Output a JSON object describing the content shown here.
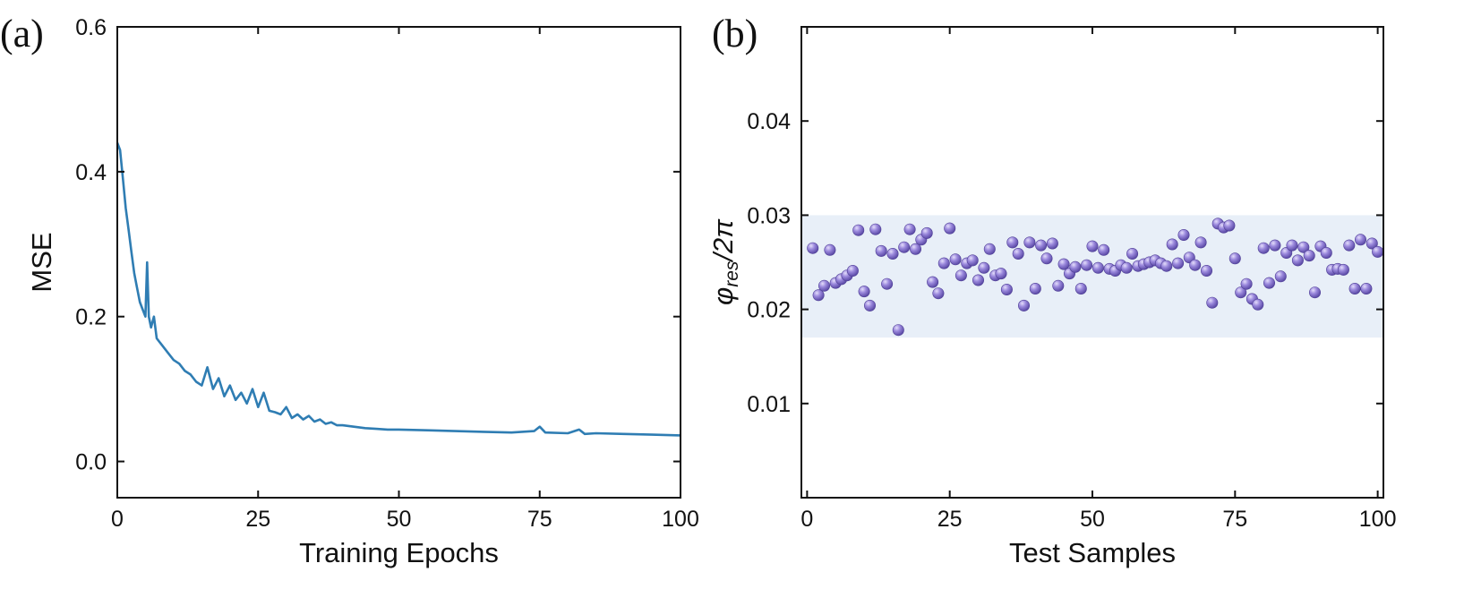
{
  "chart_data": [
    {
      "type": "line",
      "panel_label": "(a)",
      "xlabel": "Training Epochs",
      "ylabel": "MSE",
      "xlim": [
        0,
        100
      ],
      "ylim": [
        -0.05,
        0.6
      ],
      "xticks": [
        0,
        25,
        50,
        75,
        100
      ],
      "xtick_labels": [
        "0",
        "25",
        "50",
        "75",
        "100"
      ],
      "yticks": [
        0.0,
        0.2,
        0.4,
        0.6
      ],
      "ytick_labels": [
        "0.0",
        "0.2",
        "0.4",
        "0.6"
      ],
      "grid": false,
      "series_color": "#2f7db3",
      "series": [
        {
          "x": [
            0,
            0.5,
            1,
            1.5,
            2,
            2.5,
            3,
            3.5,
            4,
            4.5,
            5,
            5.3,
            5.6,
            6,
            6.5,
            7,
            8,
            9,
            10,
            11,
            12,
            13,
            14,
            15,
            16,
            17,
            18,
            19,
            20,
            21,
            22,
            23,
            24,
            25,
            26,
            27,
            28,
            29,
            30,
            31,
            32,
            33,
            34,
            35,
            36,
            37,
            38,
            39,
            40,
            42,
            44,
            46,
            48,
            50,
            55,
            60,
            65,
            70,
            74,
            75,
            76,
            80,
            82,
            83,
            85,
            90,
            95,
            100
          ],
          "values": [
            0.44,
            0.43,
            0.39,
            0.35,
            0.32,
            0.29,
            0.26,
            0.24,
            0.22,
            0.21,
            0.2,
            0.275,
            0.2,
            0.185,
            0.2,
            0.17,
            0.16,
            0.15,
            0.14,
            0.135,
            0.125,
            0.12,
            0.11,
            0.105,
            0.13,
            0.1,
            0.115,
            0.09,
            0.105,
            0.085,
            0.095,
            0.08,
            0.1,
            0.075,
            0.095,
            0.07,
            0.068,
            0.065,
            0.075,
            0.06,
            0.065,
            0.058,
            0.063,
            0.055,
            0.058,
            0.052,
            0.054,
            0.05,
            0.05,
            0.048,
            0.046,
            0.045,
            0.044,
            0.044,
            0.043,
            0.042,
            0.041,
            0.04,
            0.042,
            0.048,
            0.04,
            0.039,
            0.044,
            0.038,
            0.039,
            0.038,
            0.037,
            0.036
          ]
        }
      ]
    },
    {
      "type": "scatter",
      "panel_label": "(b)",
      "xlabel": "Test Samples",
      "ylabel": "φres/2π",
      "ylabel_main": "φ",
      "ylabel_sub": "res",
      "ylabel_tail": "/2π",
      "xlim": [
        -1,
        101
      ],
      "ylim": [
        0,
        0.05
      ],
      "xticks": [
        0,
        25,
        50,
        75,
        100
      ],
      "xtick_labels": [
        "0",
        "25",
        "50",
        "75",
        "100"
      ],
      "yticks": [
        0.01,
        0.02,
        0.03,
        0.04
      ],
      "ytick_labels": [
        "0.01",
        "0.02",
        "0.03",
        "0.04"
      ],
      "band": [
        0.017,
        0.03
      ],
      "band_color": "#e8eff8",
      "marker_color": "#8d7ad1",
      "grid": false,
      "series": [
        {
          "x": [
            1,
            2,
            3,
            4,
            5,
            6,
            7,
            8,
            9,
            10,
            11,
            12,
            13,
            14,
            15,
            16,
            17,
            18,
            19,
            20,
            21,
            22,
            23,
            24,
            25,
            26,
            27,
            28,
            29,
            30,
            31,
            32,
            33,
            34,
            35,
            36,
            37,
            38,
            39,
            40,
            41,
            42,
            43,
            44,
            45,
            46,
            47,
            48,
            49,
            50,
            51,
            52,
            53,
            54,
            55,
            56,
            57,
            58,
            59,
            60,
            61,
            62,
            63,
            64,
            65,
            66,
            67,
            68,
            69,
            70,
            71,
            72,
            73,
            74,
            75,
            76,
            77,
            78,
            79,
            80,
            81,
            82,
            83,
            84,
            85,
            86,
            87,
            88,
            89,
            90,
            91,
            92,
            93,
            94,
            95,
            96,
            97,
            98,
            99,
            100
          ],
          "values": [
            0.0265,
            0.0215,
            0.0225,
            0.0263,
            0.0228,
            0.0232,
            0.0236,
            0.0241,
            0.0284,
            0.0219,
            0.0204,
            0.0285,
            0.0262,
            0.0227,
            0.0259,
            0.0178,
            0.0266,
            0.0285,
            0.0264,
            0.0274,
            0.0281,
            0.0229,
            0.0217,
            0.0249,
            0.0286,
            0.0253,
            0.0236,
            0.0249,
            0.0252,
            0.0231,
            0.0244,
            0.0264,
            0.0236,
            0.0238,
            0.0221,
            0.0271,
            0.0259,
            0.0204,
            0.0271,
            0.0222,
            0.0268,
            0.0254,
            0.027,
            0.0225,
            0.0248,
            0.0238,
            0.0245,
            0.0222,
            0.0247,
            0.0267,
            0.0244,
            0.0263,
            0.0243,
            0.0241,
            0.0247,
            0.0244,
            0.0259,
            0.0246,
            0.0248,
            0.025,
            0.0252,
            0.0249,
            0.0246,
            0.0269,
            0.0249,
            0.0279,
            0.0255,
            0.0247,
            0.0271,
            0.0241,
            0.0207,
            0.0291,
            0.0287,
            0.0289,
            0.0254,
            0.0218,
            0.0227,
            0.0211,
            0.0205,
            0.0265,
            0.0228,
            0.0268,
            0.0235,
            0.026,
            0.0268,
            0.0252,
            0.0266,
            0.0257,
            0.0218,
            0.0267,
            0.026,
            0.0242,
            0.0243,
            0.0242,
            0.0268,
            0.0222,
            0.0274,
            0.0222,
            0.027,
            0.0261
          ]
        }
      ]
    }
  ]
}
